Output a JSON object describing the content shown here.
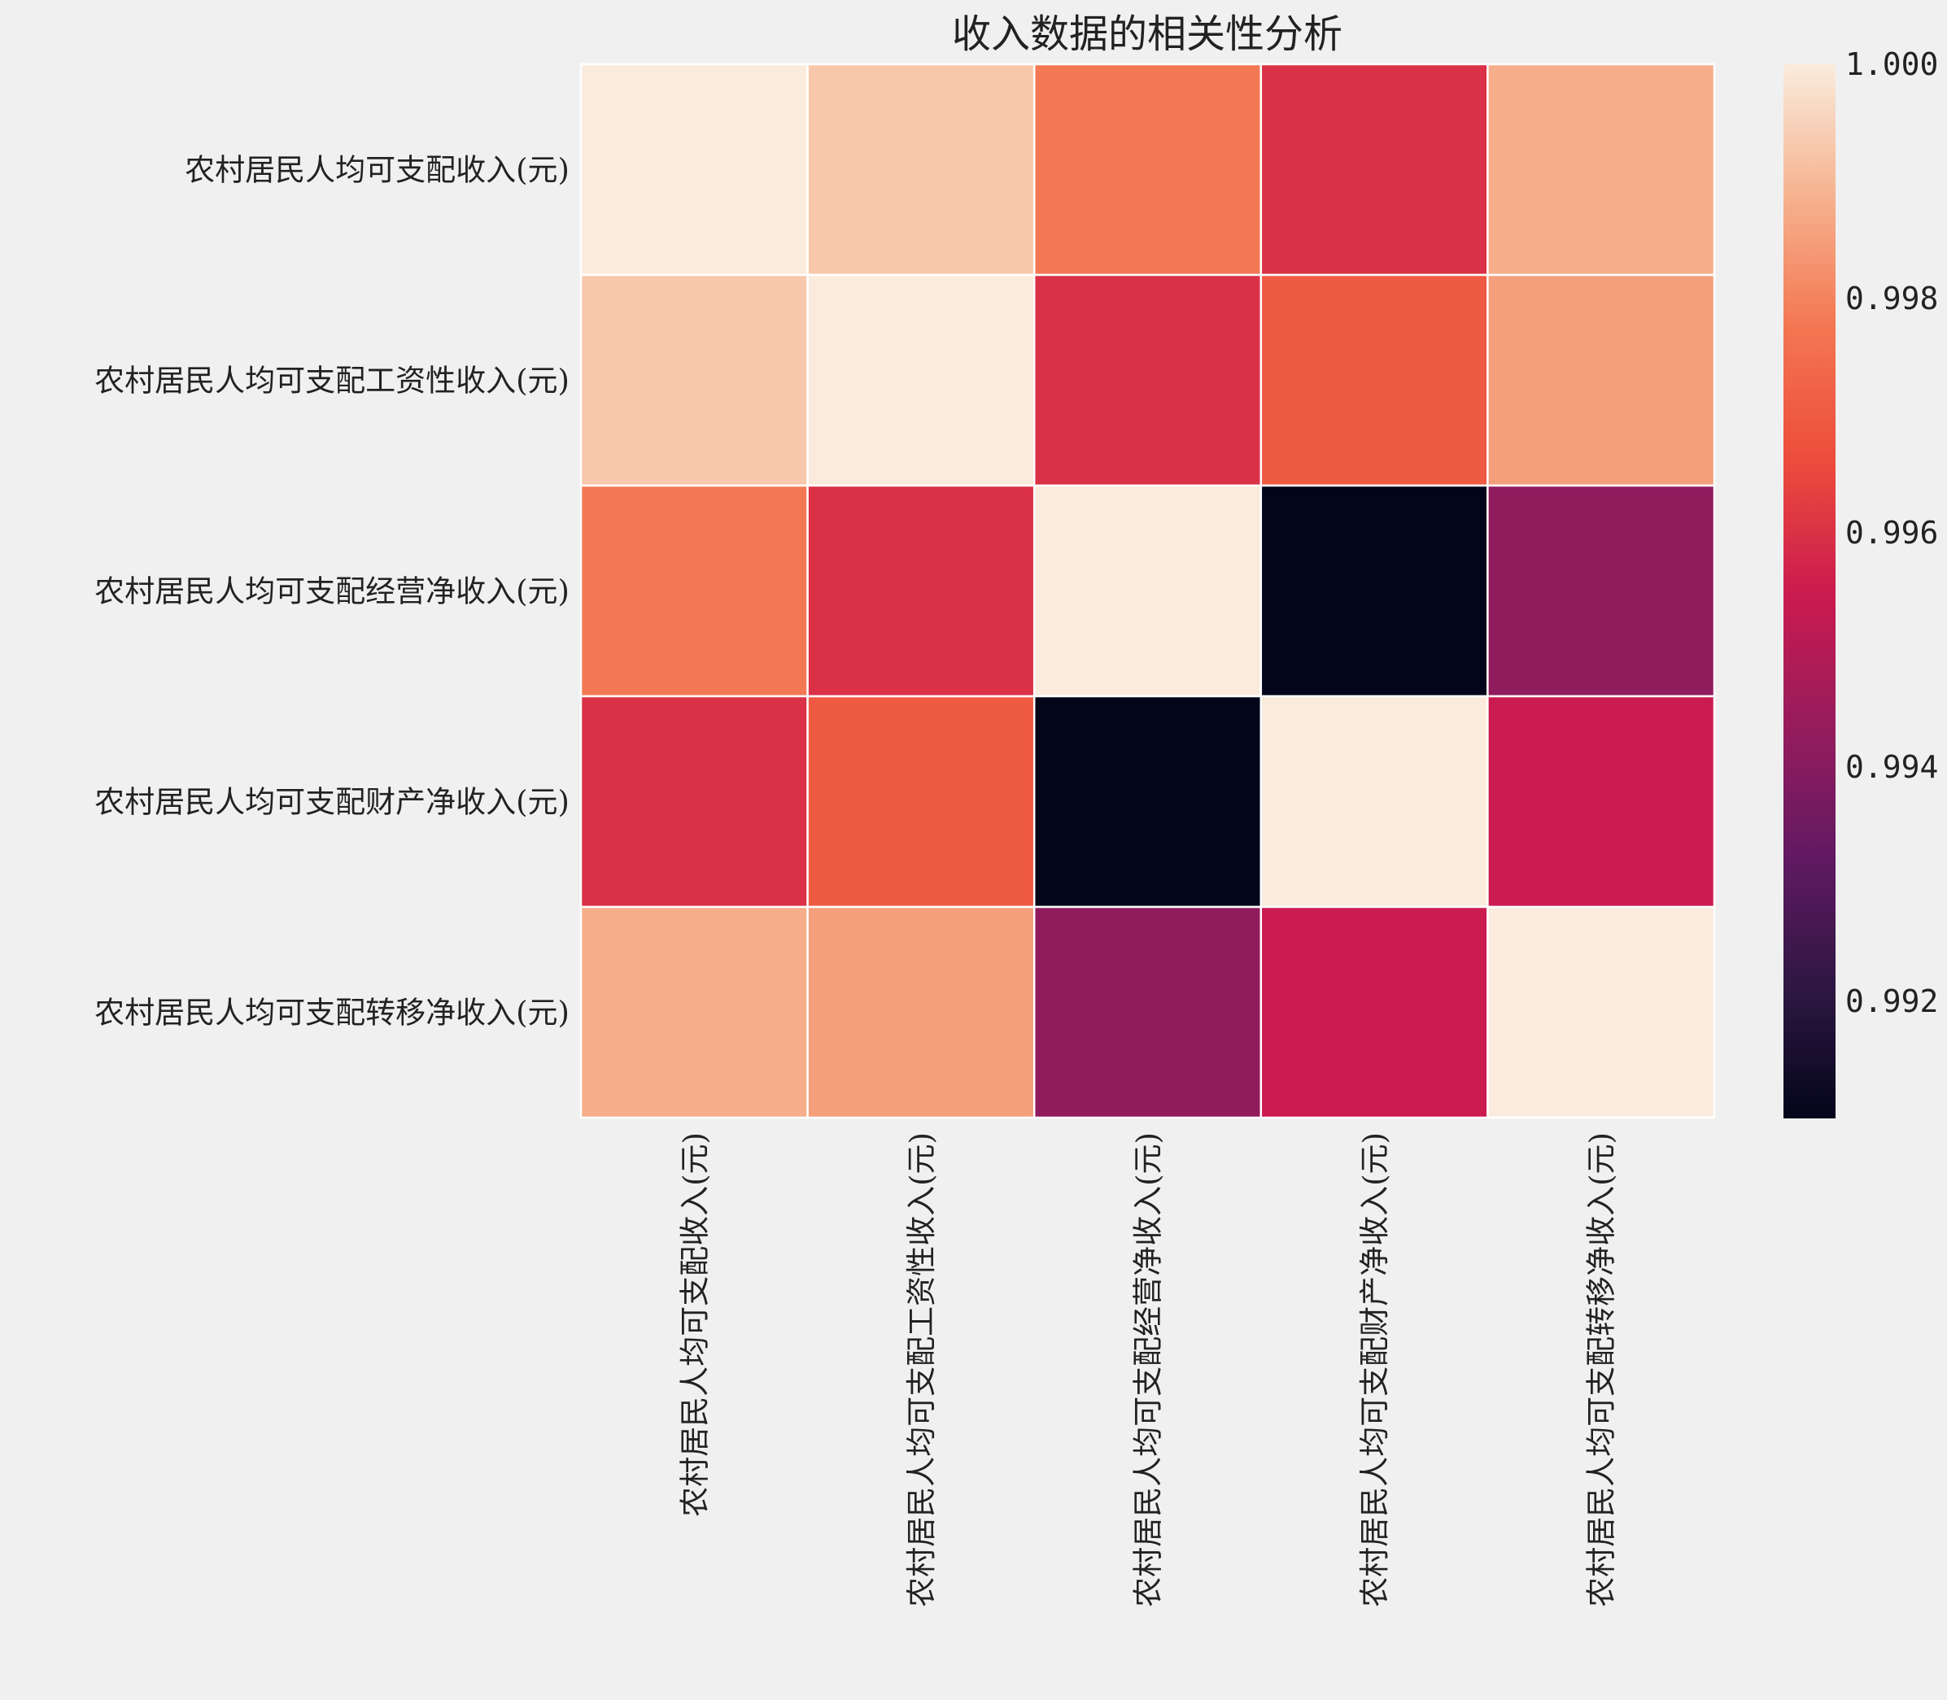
{
  "chart_data": {
    "type": "heatmap",
    "title": "收入数据的相关性分析",
    "row_labels": [
      "农村居民人均可支配收入(元)",
      "农村居民人均可支配工资性收入(元)",
      "农村居民人均可支配经营净收入(元)",
      "农村居民人均可支配财产净收入(元)",
      "农村居民人均可支配转移净收入(元)"
    ],
    "col_labels": [
      "农村居民人均可支配收入(元)",
      "农村居民人均可支配工资性收入(元)",
      "农村居民人均可支配经营净收入(元)",
      "农村居民人均可支配财产净收入(元)",
      "农村居民人均可支配转移净收入(元)"
    ],
    "matrix": [
      [
        1.0,
        0.9993,
        0.9978,
        0.996,
        0.9988
      ],
      [
        0.9993,
        1.0,
        0.996,
        0.997,
        0.9985
      ],
      [
        0.9978,
        0.996,
        1.0,
        0.991,
        0.9942
      ],
      [
        0.996,
        0.997,
        0.991,
        1.0,
        0.9955
      ],
      [
        0.9988,
        0.9985,
        0.9942,
        0.9955,
        1.0
      ]
    ],
    "colorbar": {
      "range": [
        0.991,
        1.0
      ],
      "ticks": [
        0.992,
        0.994,
        0.996,
        0.998,
        1.0
      ],
      "tick_labels": [
        "0.992",
        "0.994",
        "0.996",
        "0.998",
        "1.000"
      ],
      "colormap": "rocket"
    },
    "grid": false
  }
}
